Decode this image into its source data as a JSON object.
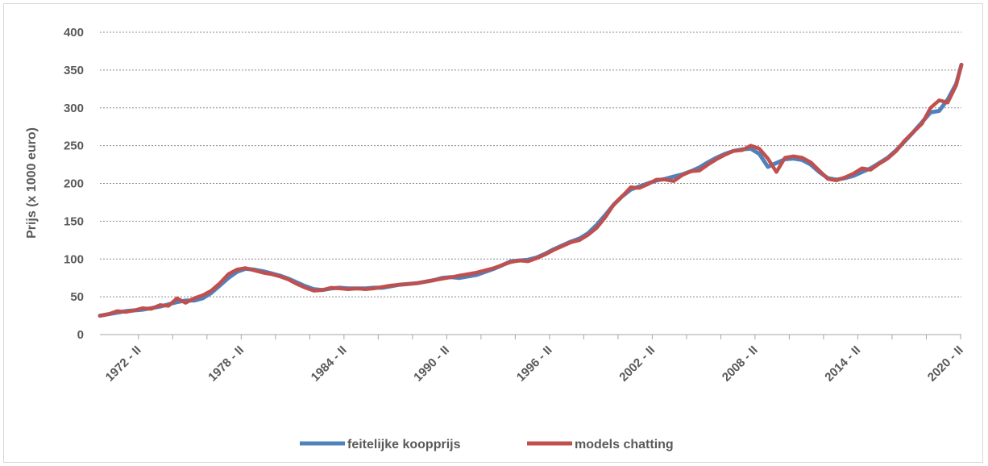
{
  "chart_data": {
    "type": "line",
    "ylabel": "Prijs (x 1000 euro)",
    "xlabel": "",
    "ylim": [
      0,
      400
    ],
    "yticks": [
      "0",
      "50",
      "100",
      "150",
      "200",
      "250",
      "300",
      "350",
      "400"
    ],
    "xticks": [
      {
        "label": "1972 - II",
        "year": 1972.25
      },
      {
        "label": "1978 - II",
        "year": 1978.25
      },
      {
        "label": "1984 - II",
        "year": 1984.25
      },
      {
        "label": "1990 - II",
        "year": 1990.25
      },
      {
        "label": "1996 - II",
        "year": 1996.25
      },
      {
        "label": "2002 - II",
        "year": 2002.25
      },
      {
        "label": "2008 - II",
        "year": 2008.25
      },
      {
        "label": "2014 - II",
        "year": 2014.25
      },
      {
        "label": "2020 - II",
        "year": 2020.25
      }
    ],
    "xlim": [
      1970.0,
      2020.3
    ],
    "grid": true,
    "legend_position": "bottom",
    "series": [
      {
        "name": "feitelijke koopprijs",
        "color": "#4f81bd",
        "points": [
          [
            1970.0,
            25
          ],
          [
            1970.5,
            27
          ],
          [
            1971.0,
            29
          ],
          [
            1971.5,
            31
          ],
          [
            1972.0,
            32
          ],
          [
            1972.5,
            33
          ],
          [
            1973.0,
            35
          ],
          [
            1973.5,
            37
          ],
          [
            1974.0,
            40
          ],
          [
            1974.5,
            43
          ],
          [
            1975.0,
            45
          ],
          [
            1975.5,
            45
          ],
          [
            1976.0,
            48
          ],
          [
            1976.5,
            55
          ],
          [
            1977.0,
            65
          ],
          [
            1977.5,
            75
          ],
          [
            1978.0,
            83
          ],
          [
            1978.5,
            87
          ],
          [
            1979.0,
            86
          ],
          [
            1979.5,
            84
          ],
          [
            1980.0,
            81
          ],
          [
            1980.5,
            78
          ],
          [
            1981.0,
            74
          ],
          [
            1981.5,
            69
          ],
          [
            1982.0,
            64
          ],
          [
            1982.5,
            60
          ],
          [
            1983.0,
            59
          ],
          [
            1983.5,
            61
          ],
          [
            1984.0,
            62
          ],
          [
            1984.5,
            61
          ],
          [
            1985.0,
            61
          ],
          [
            1985.5,
            61
          ],
          [
            1986.0,
            62
          ],
          [
            1986.5,
            62
          ],
          [
            1987.0,
            64
          ],
          [
            1987.5,
            66
          ],
          [
            1988.0,
            67
          ],
          [
            1988.5,
            68
          ],
          [
            1989.0,
            70
          ],
          [
            1989.5,
            72
          ],
          [
            1990.0,
            75
          ],
          [
            1990.5,
            76
          ],
          [
            1991.0,
            75
          ],
          [
            1991.5,
            77
          ],
          [
            1992.0,
            79
          ],
          [
            1992.5,
            83
          ],
          [
            1993.0,
            87
          ],
          [
            1993.5,
            92
          ],
          [
            1994.0,
            97
          ],
          [
            1994.5,
            98
          ],
          [
            1995.0,
            99
          ],
          [
            1995.5,
            102
          ],
          [
            1996.0,
            107
          ],
          [
            1996.5,
            113
          ],
          [
            1997.0,
            118
          ],
          [
            1997.5,
            123
          ],
          [
            1998.0,
            127
          ],
          [
            1998.5,
            134
          ],
          [
            1999.0,
            145
          ],
          [
            1999.5,
            158
          ],
          [
            2000.0,
            172
          ],
          [
            2000.5,
            183
          ],
          [
            2001.0,
            192
          ],
          [
            2001.5,
            196
          ],
          [
            2002.0,
            200
          ],
          [
            2002.5,
            204
          ],
          [
            2003.0,
            206
          ],
          [
            2003.5,
            209
          ],
          [
            2004.0,
            212
          ],
          [
            2004.5,
            216
          ],
          [
            2005.0,
            221
          ],
          [
            2005.5,
            228
          ],
          [
            2006.0,
            234
          ],
          [
            2006.5,
            239
          ],
          [
            2007.0,
            243
          ],
          [
            2007.5,
            245
          ],
          [
            2008.0,
            246
          ],
          [
            2008.5,
            239
          ],
          [
            2009.0,
            222
          ],
          [
            2009.5,
            227
          ],
          [
            2010.0,
            232
          ],
          [
            2010.5,
            233
          ],
          [
            2011.0,
            231
          ],
          [
            2011.5,
            225
          ],
          [
            2012.0,
            215
          ],
          [
            2012.5,
            207
          ],
          [
            2013.0,
            205
          ],
          [
            2013.5,
            207
          ],
          [
            2014.0,
            210
          ],
          [
            2014.5,
            215
          ],
          [
            2015.0,
            220
          ],
          [
            2015.5,
            227
          ],
          [
            2016.0,
            234
          ],
          [
            2016.5,
            244
          ],
          [
            2017.0,
            256
          ],
          [
            2017.5,
            268
          ],
          [
            2018.0,
            281
          ],
          [
            2018.5,
            294
          ],
          [
            2019.0,
            296
          ],
          [
            2019.5,
            311
          ],
          [
            2020.0,
            332
          ],
          [
            2020.3,
            357
          ]
        ]
      },
      {
        "name": "models chatting",
        "color": "#c0504d",
        "points": [
          [
            1970.0,
            25
          ],
          [
            1970.5,
            27
          ],
          [
            1971.0,
            31
          ],
          [
            1971.5,
            30
          ],
          [
            1972.0,
            32
          ],
          [
            1972.5,
            35
          ],
          [
            1973.0,
            34
          ],
          [
            1973.5,
            39
          ],
          [
            1974.0,
            38
          ],
          [
            1974.5,
            48
          ],
          [
            1975.0,
            42
          ],
          [
            1975.5,
            48
          ],
          [
            1976.0,
            52
          ],
          [
            1976.5,
            58
          ],
          [
            1977.0,
            68
          ],
          [
            1977.5,
            80
          ],
          [
            1978.0,
            86
          ],
          [
            1978.5,
            88
          ],
          [
            1979.0,
            85
          ],
          [
            1979.5,
            82
          ],
          [
            1980.0,
            80
          ],
          [
            1980.5,
            77
          ],
          [
            1981.0,
            73
          ],
          [
            1981.5,
            67
          ],
          [
            1982.0,
            62
          ],
          [
            1982.5,
            58
          ],
          [
            1983.0,
            59
          ],
          [
            1983.5,
            62
          ],
          [
            1984.0,
            61
          ],
          [
            1984.5,
            60
          ],
          [
            1985.0,
            61
          ],
          [
            1985.5,
            60
          ],
          [
            1986.0,
            61
          ],
          [
            1986.5,
            63
          ],
          [
            1987.0,
            65
          ],
          [
            1987.5,
            66
          ],
          [
            1988.0,
            67
          ],
          [
            1988.5,
            68
          ],
          [
            1989.0,
            70
          ],
          [
            1989.5,
            72
          ],
          [
            1990.0,
            74
          ],
          [
            1990.5,
            76
          ],
          [
            1991.0,
            78
          ],
          [
            1991.5,
            80
          ],
          [
            1992.0,
            82
          ],
          [
            1992.5,
            85
          ],
          [
            1993.0,
            88
          ],
          [
            1993.5,
            92
          ],
          [
            1994.0,
            96
          ],
          [
            1994.5,
            98
          ],
          [
            1995.0,
            97
          ],
          [
            1995.5,
            101
          ],
          [
            1996.0,
            106
          ],
          [
            1996.5,
            112
          ],
          [
            1997.0,
            117
          ],
          [
            1997.5,
            122
          ],
          [
            1998.0,
            125
          ],
          [
            1998.5,
            132
          ],
          [
            1999.0,
            141
          ],
          [
            1999.5,
            155
          ],
          [
            2000.0,
            172
          ],
          [
            2000.5,
            183
          ],
          [
            2001.0,
            195
          ],
          [
            2001.5,
            194
          ],
          [
            2002.0,
            199
          ],
          [
            2002.5,
            205
          ],
          [
            2003.0,
            205
          ],
          [
            2003.5,
            203
          ],
          [
            2004.0,
            211
          ],
          [
            2004.5,
            216
          ],
          [
            2005.0,
            217
          ],
          [
            2005.5,
            225
          ],
          [
            2006.0,
            232
          ],
          [
            2006.5,
            238
          ],
          [
            2007.0,
            243
          ],
          [
            2007.5,
            244
          ],
          [
            2008.0,
            250
          ],
          [
            2008.5,
            246
          ],
          [
            2009.0,
            233
          ],
          [
            2009.5,
            215
          ],
          [
            2010.0,
            234
          ],
          [
            2010.5,
            236
          ],
          [
            2011.0,
            234
          ],
          [
            2011.5,
            228
          ],
          [
            2012.0,
            217
          ],
          [
            2012.5,
            206
          ],
          [
            2013.0,
            204
          ],
          [
            2013.5,
            208
          ],
          [
            2014.0,
            213
          ],
          [
            2014.5,
            220
          ],
          [
            2015.0,
            218
          ],
          [
            2015.5,
            226
          ],
          [
            2016.0,
            233
          ],
          [
            2016.5,
            243
          ],
          [
            2017.0,
            257
          ],
          [
            2017.5,
            268
          ],
          [
            2018.0,
            279
          ],
          [
            2018.5,
            300
          ],
          [
            2019.0,
            310
          ],
          [
            2019.5,
            307
          ],
          [
            2020.0,
            330
          ],
          [
            2020.3,
            357
          ]
        ]
      }
    ]
  }
}
